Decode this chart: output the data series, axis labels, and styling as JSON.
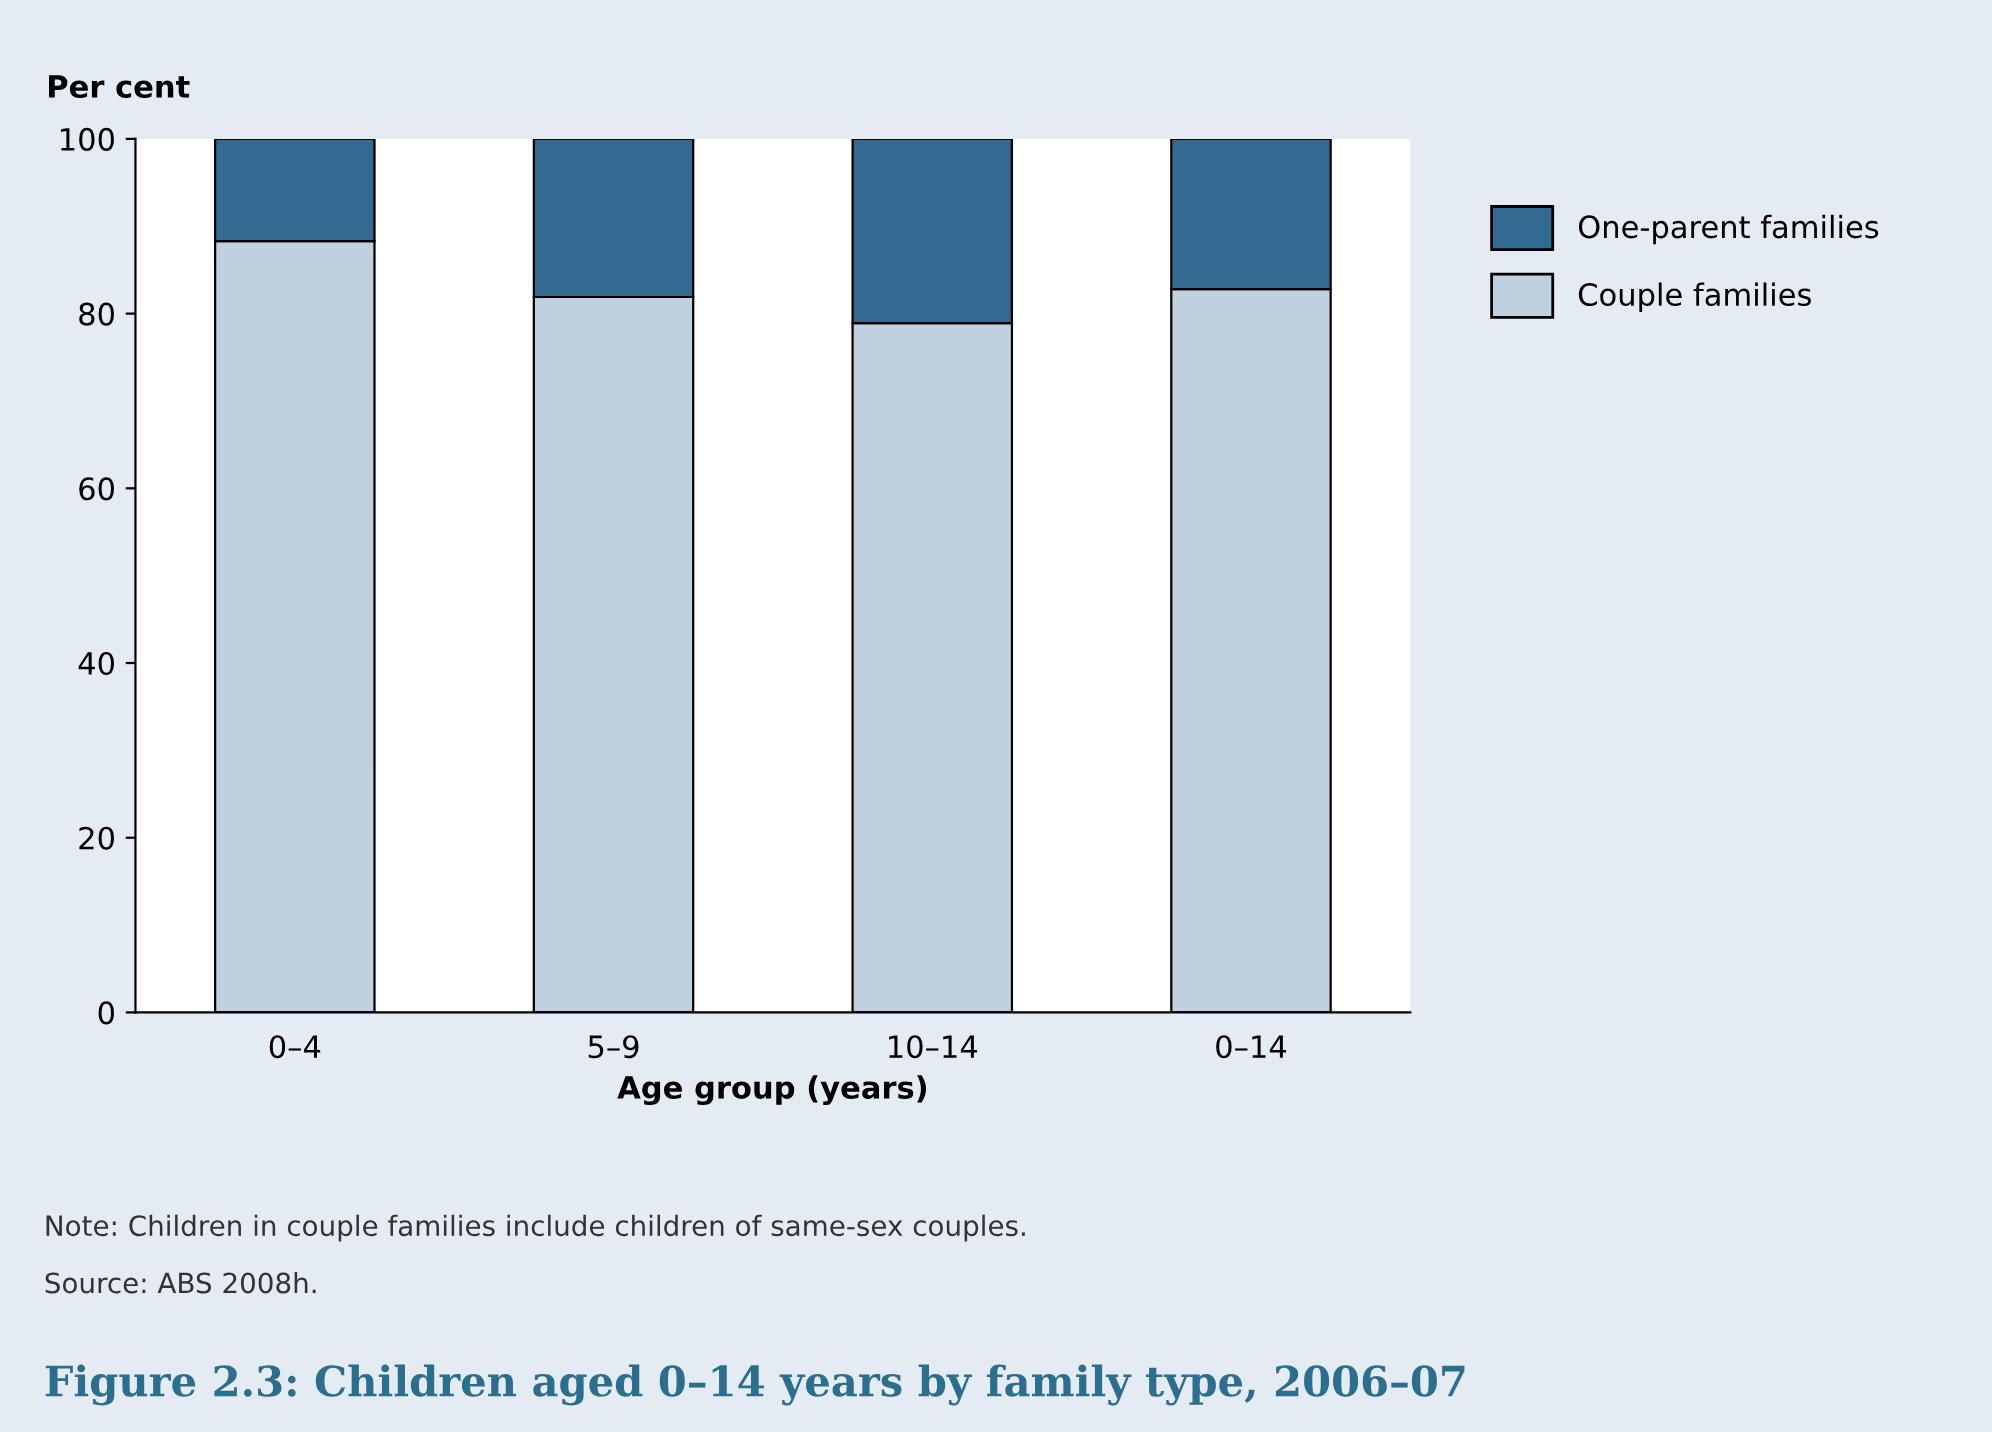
{
  "chart_data": {
    "type": "bar",
    "title": "Figure 2.3: Children aged 0–14 years by family type, 2006–07",
    "ylabel": "Per cent",
    "xlabel": "Age group (years)",
    "categories": [
      "0–4",
      "5–9",
      "10–14",
      "0–14"
    ],
    "series": [
      {
        "name": "Couple families",
        "color": "#bfd1de",
        "values": [
          88.3,
          81.9,
          78.9,
          82.8
        ]
      },
      {
        "name": "One-parent families",
        "color": "#336a91",
        "values": [
          11.7,
          18.1,
          21.1,
          17.2
        ]
      }
    ],
    "stacked": true,
    "ylim": [
      0,
      100
    ],
    "yticks": [
      0,
      20,
      40,
      60,
      80,
      100
    ],
    "grid": false,
    "legend": "top right",
    "annotations": [
      "Note: Children in couple families include children of same-sex couples.",
      "Source: ABS 2008h."
    ]
  }
}
